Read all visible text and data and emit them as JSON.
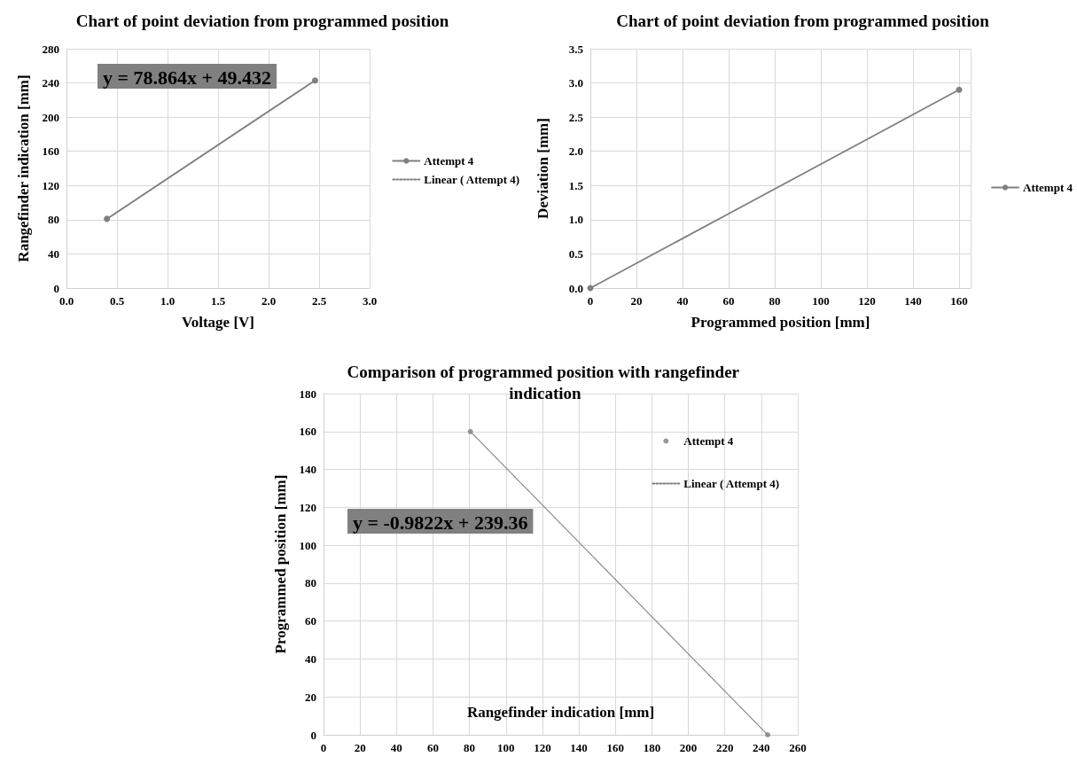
{
  "chart_data": [
    {
      "type": "line",
      "title": "Chart of point deviation from programmed position",
      "xlabel": "Voltage [V]",
      "ylabel": "Rangefinder indication [mm]",
      "series": [
        {
          "name": "Attempt 4",
          "color": "#808080",
          "x": [
            0.4,
            2.46
          ],
          "values": [
            81,
            243
          ]
        },
        {
          "name": "Linear ( Attempt 4)",
          "color": "#808080",
          "x": [
            0.4,
            2.46
          ],
          "values": [
            81,
            243
          ],
          "marker": "none",
          "line_style": "dotted"
        }
      ],
      "xlim": [
        0,
        3
      ],
      "xticks": [
        {
          "value": 0,
          "label": "0.0"
        },
        {
          "value": 0.5,
          "label": "0.5"
        },
        {
          "value": 1,
          "label": "1.0"
        },
        {
          "value": 1.5,
          "label": "1.5"
        },
        {
          "value": 2,
          "label": "2.0"
        },
        {
          "value": 2.5,
          "label": "2.5"
        },
        {
          "value": 3,
          "label": "3.0"
        }
      ],
      "ylim": [
        0,
        280
      ],
      "yticks": [
        0,
        40,
        80,
        120,
        160,
        200,
        240,
        280
      ],
      "annotations": [
        "y = 78.864x + 49.432"
      ],
      "grid": true,
      "legend": "right",
      "marker": "circle"
    },
    {
      "type": "line",
      "title": "Chart of point deviation from programmed position",
      "xlabel": "Programmed position [mm]",
      "ylabel": "Deviation [mm]",
      "series": [
        {
          "name": "Attempt 4",
          "color": "#808080",
          "x": [
            0,
            160
          ],
          "values": [
            0,
            2.9
          ]
        }
      ],
      "xlim": [
        0,
        165
      ],
      "xticks": [
        0,
        20,
        40,
        60,
        80,
        100,
        120,
        140,
        160
      ],
      "ylim": [
        0,
        3.5
      ],
      "yticks": [
        {
          "value": 0,
          "label": "0.0"
        },
        {
          "value": 0.5,
          "label": "0.5"
        },
        {
          "value": 1,
          "label": "1.0"
        },
        {
          "value": 1.5,
          "label": "1.5"
        },
        {
          "value": 2,
          "label": "2.0"
        },
        {
          "value": 2.5,
          "label": "2.5"
        },
        {
          "value": 3,
          "label": "3.0"
        },
        {
          "value": 3.5,
          "label": "3.5"
        }
      ],
      "grid": true,
      "legend": "right",
      "marker": "circle"
    },
    {
      "type": "scatter",
      "title": "Comparison of programmed position with rangefinder indication",
      "xlabel": "Rangefinder indication [mm]",
      "ylabel": "Programmed position [mm]",
      "series": [
        {
          "name": "Attempt 4",
          "color": "#808080",
          "x": [
            80.5,
            243.5
          ],
          "values": [
            160,
            0
          ]
        },
        {
          "name": "Linear ( Attempt 4)",
          "color": "#808080",
          "type": "line",
          "x": [
            80.5,
            243.5
          ],
          "values": [
            160,
            0
          ],
          "marker": "none",
          "line_style": "dotted"
        }
      ],
      "xlim": [
        0,
        260
      ],
      "xticks": [
        0,
        20,
        40,
        60,
        80,
        100,
        120,
        140,
        160,
        180,
        200,
        220,
        240,
        260
      ],
      "ylim": [
        0,
        180
      ],
      "yticks": [
        0,
        20,
        40,
        60,
        80,
        100,
        120,
        140,
        160,
        180
      ],
      "annotations": [
        "y = -0.9822x + 239.36"
      ],
      "grid": true,
      "legend": "top right",
      "marker": "circle"
    }
  ]
}
